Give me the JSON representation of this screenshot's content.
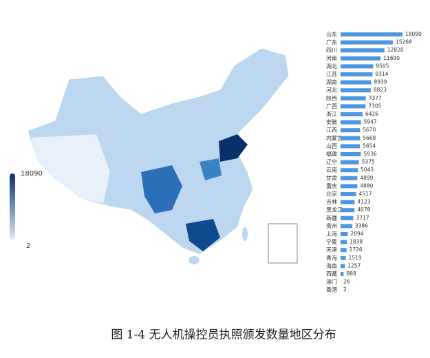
{
  "chart_data": {
    "type": "bar",
    "orientation": "horizontal",
    "caption": "图 1-4 无人机操控员执照颁发数量地区分布",
    "categories": [
      "山东",
      "广东",
      "四川",
      "河南",
      "湖北",
      "江苏",
      "湖南",
      "河北",
      "陕西",
      "广西",
      "浙江",
      "安徽",
      "江西",
      "内蒙古",
      "山西",
      "福建",
      "辽宁",
      "云南",
      "甘肃",
      "重庆",
      "北京",
      "吉林",
      "黑龙江",
      "新疆",
      "贵州",
      "上海",
      "宁夏",
      "天津",
      "青海",
      "海南",
      "西藏",
      "澳门",
      "香港"
    ],
    "values": [
      18090,
      15268,
      12820,
      11690,
      9505,
      9314,
      8939,
      8823,
      7377,
      7305,
      6426,
      5947,
      5670,
      5668,
      5654,
      5936,
      5375,
      5043,
      4899,
      4880,
      4517,
      4123,
      4078,
      3717,
      3386,
      2094,
      1838,
      1726,
      1519,
      1257,
      888,
      26,
      2
    ],
    "color": "#4f97dc",
    "visual_map": {
      "max": 18090,
      "min": 2,
      "colors": [
        "#08306b",
        "#deebf7"
      ]
    }
  }
}
